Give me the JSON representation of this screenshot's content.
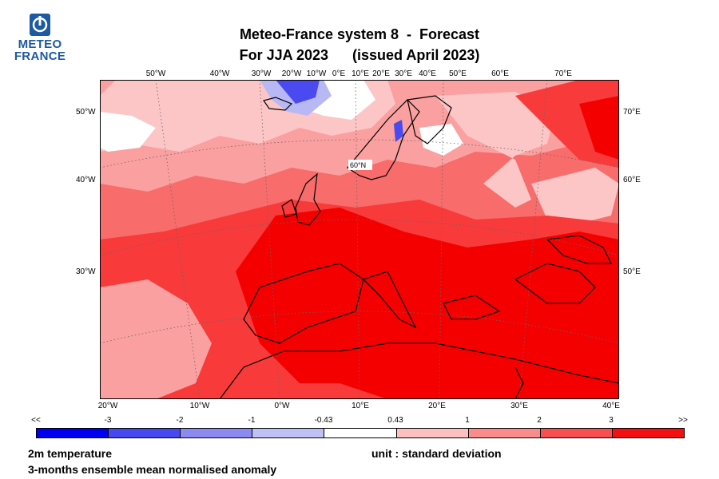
{
  "logo": {
    "line1": "METEO",
    "line2": "FRANCE"
  },
  "title": {
    "line1": "Meteo-France system 8  -  Forecast",
    "line2": "For JJA 2023      (issued April 2023)"
  },
  "map": {
    "top_lon_labels": [
      "50°W",
      "40°W",
      "30°W",
      "20°W",
      "10°W",
      "0°E",
      "10°E",
      "20°E",
      "30°E",
      "40°E",
      "50°E",
      "60°E",
      "70°E"
    ],
    "bottom_lon_labels": [
      "20°W",
      "10°W",
      "0°W",
      "10°E",
      "20°E",
      "30°E",
      "40°E"
    ],
    "left_lat_labels": [
      "50°W",
      "40°W",
      "30°W"
    ],
    "right_lat_labels": [
      "70°E",
      "60°E",
      "50°E"
    ],
    "inner_label": "60°N",
    "colors": {
      "ocean_mid": "#f86c6c",
      "strong_warm": "#f40000",
      "warm": "#f83a3a",
      "light": "#fba0a0",
      "pale": "#fdc6c6",
      "neutral": "#ffffff",
      "cold": "#4a4af0",
      "cold_light": "#b8b8f4",
      "coast": "#000000",
      "grid": "#666666"
    }
  },
  "colorbar": {
    "labels": [
      "<<",
      "-3",
      "-2",
      "-1",
      "-0.43",
      "0.43",
      "1",
      "2",
      "3",
      ">>"
    ],
    "colors": [
      "#0000f0",
      "#4848f0",
      "#8a8af0",
      "#c0c0f4",
      "#ffffff",
      "#fdc0c0",
      "#fb8c8c",
      "#f85050",
      "#f41010"
    ]
  },
  "footer": {
    "variable": "2m temperature",
    "description": "3-months ensemble mean normalised anomaly",
    "unit": "unit : standard deviation"
  }
}
